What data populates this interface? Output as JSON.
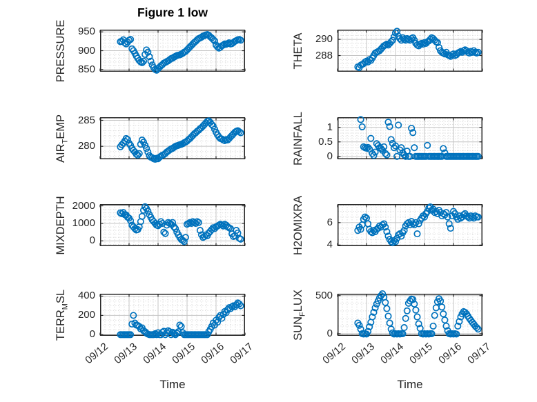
{
  "figure": {
    "title": "Figure 1 low",
    "marker_color": "#0072BD",
    "axis_color": "#262626",
    "grid_color": "#c4c4c4",
    "minor_grid_color": "#d2d2d2",
    "background": "#ffffff"
  },
  "x_axis": {
    "label": "Time",
    "tick_labels": [
      "09/12",
      "09/13",
      "09/14",
      "09/15",
      "09/16",
      "09/17"
    ],
    "tick_values": [
      0,
      1,
      2,
      3,
      4,
      5
    ],
    "xlim": [
      0,
      5
    ]
  },
  "chart_data": [
    {
      "id": "pressure",
      "name": "PRESSURE",
      "type": "scatter",
      "col": "left",
      "row": 0,
      "ylabel_parts": [
        {
          "t": "PRESSURE"
        }
      ],
      "yticks": [
        850,
        900,
        950
      ],
      "ylim": [
        844,
        956
      ],
      "y_minor_step": 10,
      "t_unit": "days_after_09/12",
      "t0": 0.7,
      "dt": 0.05,
      "values": [
        924,
        925,
        929,
        921,
        918,
        923,
        928,
        930,
        905,
        900,
        893,
        886,
        880,
        874,
        870,
        868,
        872,
        890,
        902,
        896,
        884,
        872,
        862,
        855,
        850,
        848,
        852,
        856,
        860,
        863,
        867,
        869,
        871,
        873,
        876,
        879,
        880,
        883,
        885,
        887,
        888,
        889,
        891,
        893,
        896,
        898,
        902,
        906,
        910,
        914,
        918,
        922,
        925,
        929,
        932,
        934,
        936,
        939,
        940,
        942,
        943,
        941,
        937,
        934,
        930,
        926,
        915,
        910,
        907,
        909,
        913,
        915,
        918,
        917,
        919,
        921,
        918,
        919,
        922,
        925,
        927,
        929,
        930,
        928
      ]
    },
    {
      "id": "theta",
      "name": "THETA",
      "type": "scatter",
      "col": "right",
      "row": 0,
      "ylabel_parts": [
        {
          "t": "THETA"
        }
      ],
      "yticks": [
        288,
        290
      ],
      "ylim": [
        286,
        291.2
      ],
      "y_minor_step": 0.5,
      "t_unit": "days_after_09/12",
      "t0": 0.7,
      "dt": 0.05,
      "values": [
        286.6,
        286.5,
        286.8,
        286.9,
        287.0,
        287.2,
        287.3,
        287.2,
        287.5,
        287.4,
        287.7,
        288.0,
        288.3,
        288.4,
        288.5,
        288.6,
        288.8,
        289.0,
        289.2,
        289.3,
        289.4,
        289.3,
        289.5,
        289.7,
        289.9,
        290.3,
        290.8,
        291.0,
        290.4,
        290.1,
        289.9,
        290.2,
        290.0,
        289.9,
        290.1,
        290.0,
        289.9,
        290.1,
        290.2,
        289.9,
        289.5,
        289.3,
        289.2,
        289.4,
        289.5,
        289.4,
        289.6,
        289.5,
        289.7,
        289.8,
        290.0,
        290.2,
        290.1,
        289.9,
        289.7,
        289.6,
        289.0,
        288.6,
        288.4,
        288.3,
        288.2,
        288.4,
        288.1,
        288.0,
        287.9,
        288.1,
        288.2,
        288.0,
        288.1,
        288.3,
        288.4,
        288.5,
        288.4,
        288.6,
        288.7,
        288.6,
        288.4,
        288.3,
        288.5,
        288.4,
        288.6,
        288.4,
        288.3,
        288.4
      ]
    },
    {
      "id": "air_temp",
      "name": "AIR_TEMP",
      "type": "scatter",
      "col": "left",
      "row": 1,
      "ylabel_parts": [
        {
          "t": "AIR"
        },
        {
          "t": "T",
          "sub": true
        },
        {
          "t": "EMP"
        }
      ],
      "yticks": [
        280,
        285
      ],
      "ylim": [
        277.5,
        285.6
      ],
      "y_minor_step": 1,
      "t_unit": "days_after_09/12",
      "t0": 0.7,
      "dt": 0.05,
      "values": [
        279.9,
        280.3,
        280.6,
        281.0,
        281.5,
        281.3,
        280.6,
        280.2,
        279.6,
        279.2,
        278.9,
        278.5,
        278.3,
        278.6,
        280.4,
        281.2,
        280.8,
        280.2,
        279.6,
        278.9,
        278.2,
        277.9,
        277.8,
        277.6,
        277.5,
        277.7,
        277.6,
        277.9,
        278.1,
        278.3,
        278.4,
        278.6,
        278.9,
        279.1,
        279.3,
        279.5,
        279.6,
        279.8,
        280.0,
        280.1,
        280.2,
        280.3,
        280.4,
        280.5,
        280.7,
        280.8,
        281.0,
        281.3,
        281.5,
        281.8,
        282.1,
        282.4,
        282.6,
        282.9,
        283.1,
        283.4,
        283.6,
        283.9,
        284.2,
        284.5,
        284.8,
        284.9,
        284.6,
        284.2,
        283.9,
        283.3,
        282.7,
        282.2,
        281.8,
        281.5,
        281.4,
        281.2,
        281.1,
        281.3,
        281.2,
        281.5,
        281.8,
        282.1,
        282.4,
        282.7,
        282.9,
        283.0,
        282.8,
        282.6
      ]
    },
    {
      "id": "rainfall",
      "name": "RAINFALL",
      "type": "scatter",
      "col": "right",
      "row": 1,
      "ylabel_parts": [
        {
          "t": "RAINFALL"
        }
      ],
      "yticks": [
        0,
        0.5,
        1
      ],
      "ylim": [
        -0.1,
        1.35
      ],
      "y_minor_step": 0.1,
      "t_unit": "days_after_09/12",
      "t0": 0.7,
      "dt": 0.05,
      "values": [
        null,
        null,
        1.27,
        1.02,
        0.33,
        0.3,
        0.28,
        0.31,
        0.25,
        0.62,
        0.1,
        0.03,
        0.15,
        0.44,
        0.37,
        0.3,
        0.27,
        0.21,
        0.33,
        0.1,
        0.05,
        1.18,
        1.03,
        0.58,
        0.45,
        0.3,
        0.36,
        0,
        1.08,
        0.22,
        0.3,
        0.12,
        0.05,
        0,
        0.18,
        0,
        0,
        0.97,
        0.82,
        0.3,
        0,
        0,
        0,
        0,
        0,
        0,
        0,
        0,
        0.38,
        0,
        0,
        0,
        0,
        0,
        0,
        0,
        0,
        0,
        0,
        0.27,
        0.12,
        0,
        0,
        0,
        0,
        0,
        0,
        0,
        0,
        0,
        0,
        0,
        0,
        0,
        0,
        0,
        0,
        0,
        0,
        0,
        0,
        0,
        0,
        0
      ]
    },
    {
      "id": "mixdepth",
      "name": "MIXDEPTH",
      "type": "scatter",
      "col": "left",
      "row": 2,
      "ylabel_parts": [
        {
          "t": "MIXDEPTH"
        }
      ],
      "yticks": [
        0,
        1000,
        2000
      ],
      "ylim": [
        -300,
        2100
      ],
      "y_minor_step": 200,
      "t_unit": "days_after_09/12",
      "t0": 0.7,
      "dt": 0.05,
      "values": [
        1600,
        1550,
        1620,
        1500,
        1480,
        1350,
        1300,
        1150,
        900,
        800,
        700,
        620,
        650,
        800,
        1100,
        1400,
        1750,
        1950,
        1850,
        1700,
        1500,
        1350,
        1200,
        1100,
        1000,
        900,
        870,
        950,
        1100,
        1000,
        500,
        420,
        900,
        1050,
        1000,
        950,
        1050,
        800,
        700,
        500,
        350,
        200,
        80,
        30,
        -40,
        200,
        950,
        1000,
        1050,
        1000,
        1100,
        1050,
        1000,
        1100,
        1050,
        600,
        350,
        200,
        250,
        350,
        300,
        450,
        550,
        650,
        750,
        700,
        800,
        850,
        900,
        950,
        900,
        850,
        950,
        900,
        800,
        750,
        700,
        400,
        250,
        300,
        600,
        450,
        150,
        100
      ]
    },
    {
      "id": "h2omixra",
      "name": "H2OMIXRA",
      "type": "scatter",
      "col": "right",
      "row": 2,
      "ylabel_parts": [
        {
          "t": "H2OMIXRA"
        }
      ],
      "yticks": [
        4,
        6
      ],
      "ylim": [
        3.9,
        7.65
      ],
      "y_minor_step": 0.5,
      "t_unit": "days_after_09/12",
      "t0": 0.7,
      "dt": 0.05,
      "values": [
        5.3,
        5.6,
        5.4,
        5.8,
        6.3,
        6.5,
        6.4,
        5.9,
        5.4,
        5.2,
        5.1,
        5.3,
        5.2,
        5.4,
        5.5,
        5.7,
        5.6,
        5.8,
        5.9,
        5.6,
        5.2,
        4.8,
        4.5,
        4.3,
        4.2,
        4.4,
        4.3,
        4.6,
        4.9,
        5.0,
        4.8,
        5.1,
        5.3,
        5.7,
        5.9,
        6.0,
        5.8,
        6.1,
        5.9,
        5.8,
        6.0,
        5.0,
        5.9,
        6.2,
        6.4,
        6.6,
        6.5,
        6.8,
        7.0,
        7.3,
        7.4,
        7.1,
        7.2,
        6.9,
        7.0,
        6.8,
        7.1,
        6.9,
        6.6,
        6.8,
        6.7,
        6.9,
        6.5,
        5.9,
        5.5,
        6.6,
        7.0,
        6.8,
        6.5,
        6.3,
        6.6,
        6.4,
        6.5,
        6.7,
        6.8,
        6.6,
        6.5,
        6.4,
        6.6,
        6.5,
        6.4,
        6.6,
        6.5,
        6.5
      ]
    },
    {
      "id": "terr_msl",
      "name": "TERR_MSL",
      "type": "scatter",
      "col": "left",
      "row": 3,
      "ylabel_parts": [
        {
          "t": "TERR"
        },
        {
          "t": "M",
          "sub": true
        },
        {
          "t": "SL"
        }
      ],
      "yticks": [
        0,
        200,
        400
      ],
      "ylim": [
        -12,
        425
      ],
      "y_minor_step": 50,
      "t_unit": "days_after_09/12",
      "t0": 0.7,
      "dt": 0.05,
      "values": [
        0,
        0,
        0,
        0,
        0,
        0,
        0,
        0,
        110,
        200,
        120,
        100,
        95,
        85,
        60,
        70,
        40,
        30,
        15,
        5,
        0,
        0,
        0,
        0,
        10,
        0,
        20,
        0,
        0,
        25,
        35,
        0,
        20,
        40,
        30,
        0,
        25,
        10,
        0,
        15,
        30,
        100,
        85,
        20,
        0,
        0,
        0,
        0,
        0,
        0,
        0,
        0,
        0,
        0,
        0,
        0,
        0,
        0,
        0,
        0,
        0,
        30,
        55,
        85,
        120,
        100,
        150,
        130,
        180,
        200,
        170,
        210,
        240,
        230,
        260,
        280,
        270,
        290,
        300,
        290,
        310,
        330,
        320,
        300
      ]
    },
    {
      "id": "sun_flux",
      "name": "SUN_FLUX",
      "type": "scatter",
      "col": "right",
      "row": 3,
      "ylabel_parts": [
        {
          "t": "SUN"
        },
        {
          "t": "F",
          "sub": true
        },
        {
          "t": "LUX"
        }
      ],
      "yticks": [
        0,
        500
      ],
      "ylim": [
        -28,
        525
      ],
      "y_minor_step": 100,
      "t_unit": "days_after_09/12",
      "t0": 0.7,
      "dt": 0.05,
      "values": [
        140,
        110,
        60,
        0,
        -5,
        0,
        -5,
        30,
        90,
        150,
        220,
        280,
        340,
        390,
        430,
        470,
        500,
        525,
        480,
        410,
        330,
        230,
        140,
        60,
        10,
        -5,
        0,
        -5,
        0,
        -5,
        0,
        0,
        80,
        200,
        300,
        400,
        430,
        455,
        450,
        390,
        310,
        220,
        130,
        70,
        0,
        -5,
        0,
        -5,
        0,
        -5,
        0,
        0,
        100,
        240,
        340,
        420,
        460,
        430,
        350,
        260,
        180,
        100,
        40,
        0,
        -5,
        0,
        -5,
        0,
        -5,
        100,
        160,
        220,
        260,
        290,
        280,
        260,
        230,
        200,
        175,
        150,
        125,
        100,
        80,
        60
      ]
    }
  ]
}
